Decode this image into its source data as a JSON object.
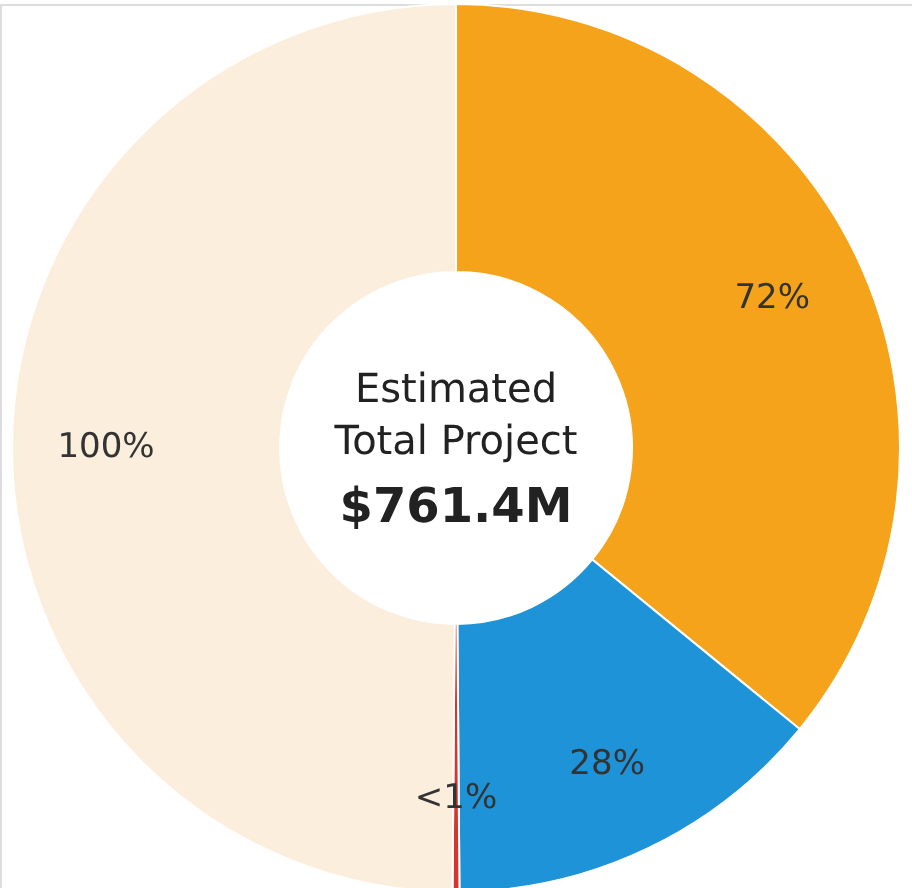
{
  "chart_data": {
    "type": "donut",
    "title": "Estimated Total Project",
    "categories": [
      null,
      null,
      null,
      null
    ],
    "values": [
      72,
      28,
      0.5,
      100
    ],
    "value_labels": [
      "72%",
      "28%",
      "<1%",
      "100%"
    ],
    "colors": [
      "#f5a31a",
      "#1f93d8",
      "#d9342b",
      "#fbeedc"
    ],
    "annotations": [
      "$761.4M"
    ],
    "legend": false
  }
}
